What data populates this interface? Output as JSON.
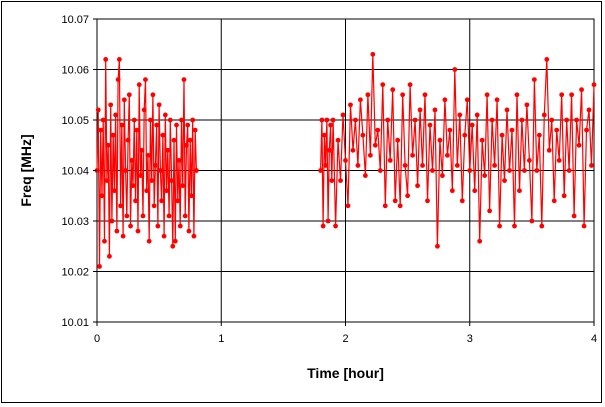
{
  "chart_data": {
    "type": "line",
    "title": "",
    "xlabel": "Time [hour]",
    "ylabel": "Freq [MHz]",
    "xlim": [
      0,
      4
    ],
    "ylim": [
      10.01,
      10.07
    ],
    "xticks": [
      0,
      1,
      2,
      3,
      4
    ],
    "xtick_labels": [
      "0",
      "1",
      "2",
      "3",
      "4"
    ],
    "yticks": [
      10.01,
      10.02,
      10.03,
      10.04,
      10.05,
      10.06,
      10.07
    ],
    "ytick_labels": [
      "10.01",
      "10.02",
      "10.03",
      "10.04",
      "10.05",
      "10.06",
      "10.07"
    ],
    "grid": true,
    "legend": "none",
    "series": [
      {
        "color": "#ff0000",
        "marker": "circle",
        "segments": [
          {
            "x": [
              0.0,
              0.01,
              0.02,
              0.03,
              0.04,
              0.05,
              0.06,
              0.07,
              0.08,
              0.09,
              0.1,
              0.11,
              0.12,
              0.13,
              0.14,
              0.15,
              0.16,
              0.17,
              0.18,
              0.19,
              0.2,
              0.21,
              0.22,
              0.23,
              0.24,
              0.25,
              0.26,
              0.27,
              0.28,
              0.29,
              0.3,
              0.31,
              0.32,
              0.33,
              0.34,
              0.35,
              0.36,
              0.37,
              0.38,
              0.39,
              0.4,
              0.41,
              0.42,
              0.43,
              0.44,
              0.45,
              0.46,
              0.47,
              0.48,
              0.49,
              0.5,
              0.51,
              0.52,
              0.53,
              0.54,
              0.55,
              0.56,
              0.57,
              0.58,
              0.59,
              0.6,
              0.61,
              0.62,
              0.63,
              0.64,
              0.65,
              0.66,
              0.67,
              0.68,
              0.69,
              0.7,
              0.71,
              0.72,
              0.73,
              0.74,
              0.75,
              0.76,
              0.77,
              0.78,
              0.79,
              0.8
            ],
            "y": [
              10.04,
              10.052,
              10.021,
              10.048,
              10.035,
              10.05,
              10.026,
              10.062,
              10.038,
              10.045,
              10.023,
              10.053,
              10.03,
              10.047,
              10.036,
              10.051,
              10.028,
              10.058,
              10.062,
              10.033,
              10.049,
              10.027,
              10.054,
              10.04,
              10.031,
              10.046,
              10.055,
              10.029,
              10.042,
              10.037,
              10.05,
              10.034,
              10.048,
              10.028,
              10.057,
              10.039,
              10.044,
              10.031,
              10.052,
              10.058,
              10.036,
              10.043,
              10.026,
              10.05,
              10.038,
              10.055,
              10.033,
              10.041,
              10.049,
              10.029,
              10.053,
              10.04,
              10.034,
              10.047,
              10.027,
              10.051,
              10.036,
              10.044,
              10.031,
              10.05,
              10.038,
              10.025,
              10.046,
              10.026,
              10.049,
              10.034,
              10.042,
              10.029,
              10.05,
              10.037,
              10.058,
              10.031,
              10.045,
              10.049,
              10.028,
              10.046,
              10.035,
              10.05,
              10.027,
              10.048,
              10.04
            ]
          },
          {
            "x": [
              1.8,
              1.81,
              1.82,
              1.83,
              1.84,
              1.85,
              1.86,
              1.87,
              1.88,
              1.89,
              1.9,
              1.92,
              1.94,
              1.96,
              1.98,
              2.0,
              2.02,
              2.04,
              2.06,
              2.08,
              2.1,
              2.12,
              2.14,
              2.16,
              2.18,
              2.2,
              2.22,
              2.24,
              2.26,
              2.28,
              2.3,
              2.32,
              2.34,
              2.36,
              2.38,
              2.4,
              2.42,
              2.44,
              2.46,
              2.48,
              2.5,
              2.52,
              2.54,
              2.56,
              2.58,
              2.6,
              2.62,
              2.64,
              2.66,
              2.68,
              2.7,
              2.72,
              2.74,
              2.76,
              2.78,
              2.8,
              2.82,
              2.84,
              2.86,
              2.88,
              2.9,
              2.92,
              2.94,
              2.96,
              2.98,
              3.0,
              3.02,
              3.04,
              3.06,
              3.08,
              3.1,
              3.12,
              3.14,
              3.16,
              3.18,
              3.2,
              3.22,
              3.24,
              3.26,
              3.28,
              3.3,
              3.32,
              3.34,
              3.36,
              3.38,
              3.4,
              3.42,
              3.44,
              3.46,
              3.48,
              3.5,
              3.52,
              3.54,
              3.56,
              3.58,
              3.6,
              3.62,
              3.64,
              3.66,
              3.68,
              3.7,
              3.72,
              3.74,
              3.76,
              3.78,
              3.8,
              3.82,
              3.84,
              3.86,
              3.88,
              3.9,
              3.92,
              3.94,
              3.96,
              3.98,
              4.0
            ],
            "y": [
              10.04,
              10.05,
              10.029,
              10.047,
              10.041,
              10.05,
              10.03,
              10.044,
              10.049,
              10.038,
              10.05,
              10.029,
              10.046,
              10.038,
              10.051,
              10.042,
              10.033,
              10.053,
              10.044,
              10.05,
              10.041,
              10.054,
              10.047,
              10.039,
              10.055,
              10.043,
              10.063,
              10.045,
              10.048,
              10.04,
              10.057,
              10.033,
              10.05,
              10.042,
              10.056,
              10.034,
              10.046,
              10.033,
              10.055,
              10.041,
              10.035,
              10.057,
              10.043,
              10.05,
              10.037,
              10.052,
              10.041,
              10.055,
              10.034,
              10.049,
              10.04,
              10.052,
              10.025,
              10.046,
              10.039,
              10.054,
              10.043,
              10.048,
              10.036,
              10.06,
              10.041,
              10.051,
              10.034,
              10.047,
              10.054,
              10.04,
              10.049,
              10.036,
              10.051,
              10.026,
              10.046,
              10.039,
              10.055,
              10.032,
              10.05,
              10.041,
              10.054,
              10.029,
              10.047,
              10.038,
              10.052,
              10.04,
              10.048,
              10.029,
              10.055,
              10.036,
              10.05,
              10.04,
              10.053,
              10.042,
              10.03,
              10.058,
              10.04,
              10.047,
              10.029,
              10.051,
              10.062,
              10.044,
              10.05,
              10.034,
              10.048,
              10.042,
              10.055,
              10.035,
              10.05,
              10.04,
              10.055,
              10.031,
              10.05,
              10.045,
              10.056,
              10.029,
              10.048,
              10.052,
              10.041,
              10.057
            ]
          }
        ]
      }
    ]
  }
}
